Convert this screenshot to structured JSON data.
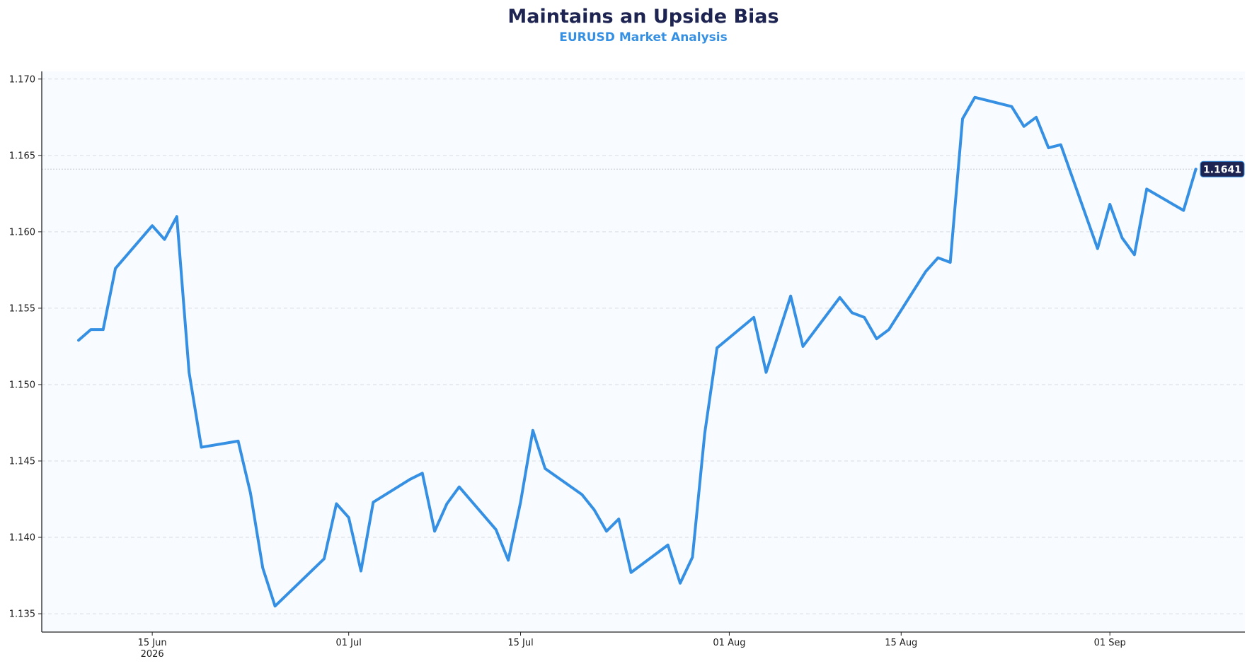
{
  "chart_data": {
    "type": "line",
    "title": "Maintains an Upside Bias",
    "subtitle": "EURUSD Market Analysis",
    "xlabel": "",
    "ylabel": "",
    "x_tick_labels": [
      {
        "date": "2026-06-15",
        "label": "15 Jun",
        "sublabel": "2026"
      },
      {
        "date": "2026-07-01",
        "label": "01 Jul",
        "sublabel": ""
      },
      {
        "date": "2026-07-15",
        "label": "15 Jul",
        "sublabel": ""
      },
      {
        "date": "2026-08-01",
        "label": "01 Aug",
        "sublabel": ""
      },
      {
        "date": "2026-08-15",
        "label": "15 Aug",
        "sublabel": ""
      },
      {
        "date": "2026-09-01",
        "label": "01 Sep",
        "sublabel": ""
      }
    ],
    "y_ticks": [
      1.135,
      1.14,
      1.145,
      1.15,
      1.155,
      1.16,
      1.165,
      1.17
    ],
    "y_tick_labels": [
      "1.135",
      "1.140",
      "1.145",
      "1.150",
      "1.155",
      "1.160",
      "1.165",
      "1.170"
    ],
    "ylim": [
      1.1338,
      1.1705
    ],
    "xlim": [
      "2026-06-06",
      "2026-09-12"
    ],
    "grid": "horizontal dashed",
    "last_value": 1.1641,
    "last_value_label": "1.1641",
    "colors": {
      "line": "#3590e3",
      "title": "#1d2451",
      "subtitle": "#3590e3",
      "badge": "#1d2451",
      "plot_background": "#f8fbff",
      "grid": "#d9dde3",
      "axis": "#222222"
    },
    "series": [
      {
        "name": "",
        "x": [
          "2026-06-09",
          "2026-06-10",
          "2026-06-11",
          "2026-06-12",
          "2026-06-15",
          "2026-06-16",
          "2026-06-17",
          "2026-06-18",
          "2026-06-19",
          "2026-06-22",
          "2026-06-23",
          "2026-06-24",
          "2026-06-25",
          "2026-06-29",
          "2026-06-30",
          "2026-07-01",
          "2026-07-02",
          "2026-07-03",
          "2026-07-06",
          "2026-07-07",
          "2026-07-08",
          "2026-07-09",
          "2026-07-10",
          "2026-07-13",
          "2026-07-14",
          "2026-07-15",
          "2026-07-16",
          "2026-07-17",
          "2026-07-20",
          "2026-07-21",
          "2026-07-22",
          "2026-07-23",
          "2026-07-24",
          "2026-07-27",
          "2026-07-28",
          "2026-07-29",
          "2026-07-30",
          "2026-07-31",
          "2026-08-03",
          "2026-08-04",
          "2026-08-05",
          "2026-08-06",
          "2026-08-07",
          "2026-08-10",
          "2026-08-11",
          "2026-08-12",
          "2026-08-13",
          "2026-08-14",
          "2026-08-17",
          "2026-08-18",
          "2026-08-19",
          "2026-08-20",
          "2026-08-21",
          "2026-08-24",
          "2026-08-25",
          "2026-08-26",
          "2026-08-27",
          "2026-08-28",
          "2026-08-31",
          "2026-09-01",
          "2026-09-02",
          "2026-09-03",
          "2026-09-04",
          "2026-09-07",
          "2026-09-08"
        ],
        "values": [
          1.1529,
          1.1536,
          1.1536,
          1.1576,
          1.1604,
          1.1595,
          1.161,
          1.1508,
          1.1459,
          1.1463,
          1.1429,
          1.138,
          1.1355,
          1.1386,
          1.1422,
          1.1413,
          1.1378,
          1.1423,
          1.1438,
          1.1442,
          1.1404,
          1.1422,
          1.1433,
          1.1405,
          1.1385,
          1.1423,
          1.147,
          1.1445,
          1.1428,
          1.1418,
          1.1404,
          1.1412,
          1.1377,
          1.1395,
          1.137,
          1.1387,
          1.1468,
          1.1524,
          1.1544,
          1.1508,
          1.1533,
          1.1558,
          1.1525,
          1.1557,
          1.1547,
          1.1544,
          1.153,
          1.1536,
          1.1574,
          1.1583,
          1.158,
          1.1674,
          1.1688,
          1.1682,
          1.1669,
          1.1675,
          1.1655,
          1.1657,
          1.1589,
          1.1618,
          1.1596,
          1.1585,
          1.1628,
          1.1614,
          1.1641
        ]
      }
    ]
  }
}
